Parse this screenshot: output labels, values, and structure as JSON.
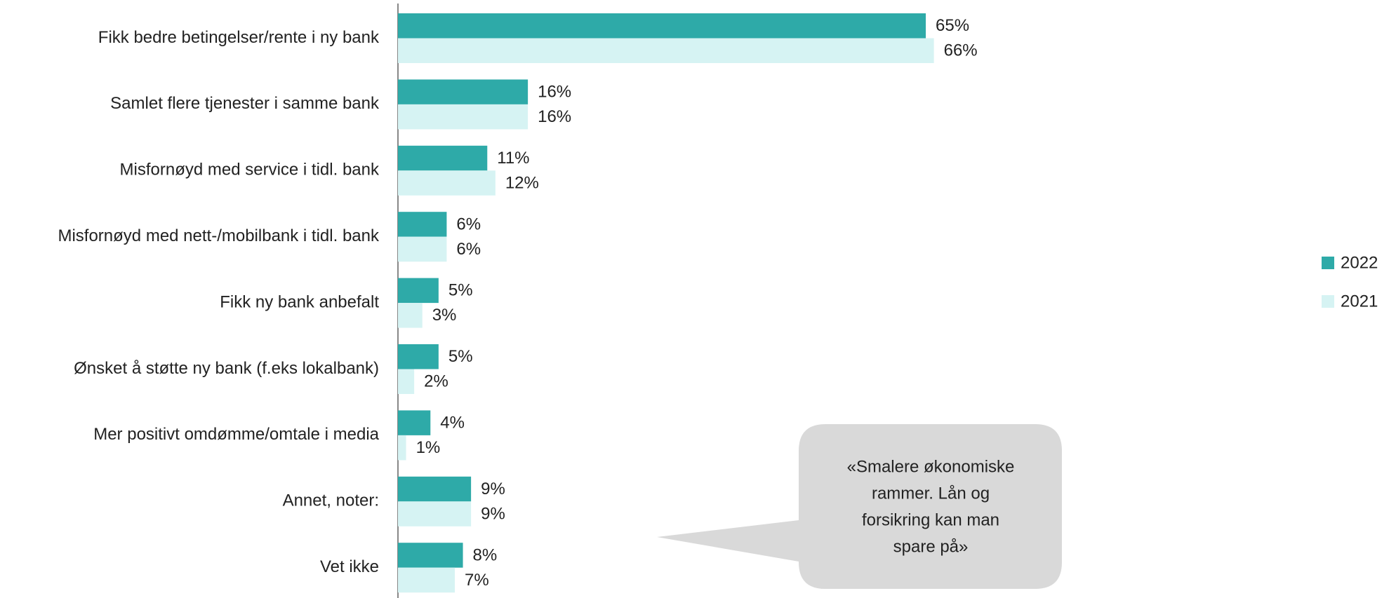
{
  "chart_data": {
    "type": "bar",
    "orientation": "horizontal",
    "categories": [
      "Fikk bedre betingelser/rente i ny bank",
      "Samlet flere tjenester i samme bank",
      "Misfornøyd med service i tidl. bank",
      "Misfornøyd med nett-/mobilbank i tidl. bank",
      "Fikk ny bank anbefalt",
      "Ønsket å støtte ny bank (f.eks lokalbank)",
      "Mer positivt omdømme/omtale i media",
      "Annet, noter:",
      "Vet ikke"
    ],
    "series": [
      {
        "name": "2022",
        "color": "#2eaaa8",
        "values": [
          65,
          16,
          11,
          6,
          5,
          5,
          4,
          9,
          8
        ],
        "value_labels": [
          "65%",
          "16%",
          "11%",
          "6%",
          "5%",
          "5%",
          "4%",
          "9%",
          "8%"
        ]
      },
      {
        "name": "2021",
        "color": "#d6f3f3",
        "values": [
          66,
          16,
          12,
          6,
          3,
          2,
          1,
          9,
          7
        ],
        "value_labels": [
          "66%",
          "16%",
          "12%",
          "6%",
          "3%",
          "2%",
          "1%",
          "9%",
          "7%"
        ]
      }
    ],
    "legend": "right",
    "annotation": [
      "«Smalere økonomiske",
      "rammer. Lån og",
      "forsikring kan man",
      "spare på»"
    ]
  }
}
